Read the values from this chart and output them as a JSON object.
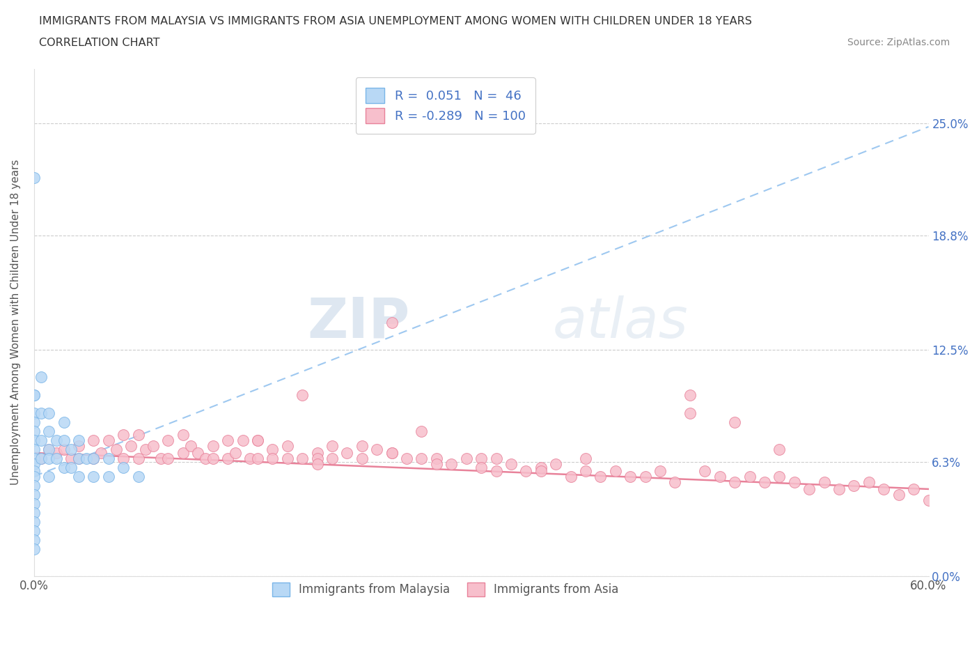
{
  "title_line1": "IMMIGRANTS FROM MALAYSIA VS IMMIGRANTS FROM ASIA UNEMPLOYMENT AMONG WOMEN WITH CHILDREN UNDER 18 YEARS",
  "title_line2": "CORRELATION CHART",
  "source": "Source: ZipAtlas.com",
  "ylabel": "Unemployment Among Women with Children Under 18 years",
  "xlim": [
    0.0,
    0.6
  ],
  "ylim": [
    0.0,
    0.28
  ],
  "yticks": [
    0.0,
    0.063,
    0.125,
    0.188,
    0.25
  ],
  "ytick_labels_left": [
    "0.0%",
    "6.3%",
    "12.5%",
    "18.8%",
    "25.0%"
  ],
  "ytick_labels_right": [
    "25.0%",
    "18.8%",
    "12.5%",
    "6.3%",
    "0.0%"
  ],
  "xticks": [
    0.0,
    0.1,
    0.2,
    0.3,
    0.4,
    0.5,
    0.6
  ],
  "xtick_labels": [
    "0.0%",
    "",
    "",
    "",
    "",
    "",
    "60.0%"
  ],
  "malaysia_color": "#b8d8f5",
  "malaysia_edge": "#7ab5e8",
  "asia_color": "#f7bfcc",
  "asia_edge": "#e8829a",
  "trendline_malaysia_color": "#9ec8f0",
  "trendline_asia_color": "#e8829a",
  "R_malaysia": 0.051,
  "N_malaysia": 46,
  "R_asia": -0.289,
  "N_asia": 100,
  "legend_label_malaysia": "Immigrants from Malaysia",
  "legend_label_asia": "Immigrants from Asia",
  "watermark_zip": "ZIP",
  "watermark_atlas": "atlas",
  "trendline_malaysia_x0": 0.0,
  "trendline_malaysia_y0": 0.055,
  "trendline_malaysia_x1": 0.6,
  "trendline_malaysia_y1": 0.248,
  "trendline_asia_x0": 0.0,
  "trendline_asia_y0": 0.068,
  "trendline_asia_x1": 0.6,
  "trendline_asia_y1": 0.048,
  "malaysia_x": [
    0.0,
    0.0,
    0.0,
    0.0,
    0.0,
    0.0,
    0.0,
    0.0,
    0.0,
    0.0,
    0.0,
    0.0,
    0.0,
    0.0,
    0.0,
    0.0,
    0.0,
    0.0,
    0.0,
    0.0,
    0.005,
    0.005,
    0.005,
    0.005,
    0.01,
    0.01,
    0.01,
    0.01,
    0.01,
    0.015,
    0.015,
    0.02,
    0.02,
    0.02,
    0.025,
    0.025,
    0.03,
    0.03,
    0.03,
    0.035,
    0.04,
    0.04,
    0.05,
    0.05,
    0.06,
    0.07
  ],
  "malaysia_y": [
    0.22,
    0.1,
    0.1,
    0.09,
    0.085,
    0.08,
    0.075,
    0.07,
    0.065,
    0.062,
    0.058,
    0.055,
    0.05,
    0.045,
    0.04,
    0.035,
    0.03,
    0.025,
    0.02,
    0.015,
    0.11,
    0.09,
    0.075,
    0.065,
    0.09,
    0.08,
    0.07,
    0.065,
    0.055,
    0.075,
    0.065,
    0.085,
    0.075,
    0.06,
    0.07,
    0.06,
    0.075,
    0.065,
    0.055,
    0.065,
    0.065,
    0.055,
    0.065,
    0.055,
    0.06,
    0.055
  ],
  "asia_x": [
    0.005,
    0.01,
    0.015,
    0.02,
    0.025,
    0.03,
    0.03,
    0.04,
    0.04,
    0.045,
    0.05,
    0.055,
    0.06,
    0.06,
    0.065,
    0.07,
    0.07,
    0.075,
    0.08,
    0.085,
    0.09,
    0.09,
    0.1,
    0.1,
    0.105,
    0.11,
    0.115,
    0.12,
    0.12,
    0.13,
    0.13,
    0.135,
    0.14,
    0.145,
    0.15,
    0.15,
    0.16,
    0.16,
    0.17,
    0.17,
    0.18,
    0.18,
    0.19,
    0.19,
    0.2,
    0.2,
    0.21,
    0.22,
    0.22,
    0.23,
    0.24,
    0.24,
    0.25,
    0.26,
    0.27,
    0.27,
    0.28,
    0.29,
    0.3,
    0.3,
    0.31,
    0.32,
    0.33,
    0.34,
    0.35,
    0.36,
    0.37,
    0.38,
    0.39,
    0.4,
    0.41,
    0.42,
    0.43,
    0.44,
    0.45,
    0.46,
    0.47,
    0.48,
    0.49,
    0.5,
    0.51,
    0.52,
    0.53,
    0.54,
    0.55,
    0.56,
    0.57,
    0.58,
    0.59,
    0.6,
    0.31,
    0.34,
    0.26,
    0.37,
    0.44,
    0.47,
    0.5,
    0.24,
    0.15,
    0.19
  ],
  "asia_y": [
    0.065,
    0.07,
    0.068,
    0.07,
    0.065,
    0.072,
    0.065,
    0.075,
    0.065,
    0.068,
    0.075,
    0.07,
    0.078,
    0.065,
    0.072,
    0.078,
    0.065,
    0.07,
    0.072,
    0.065,
    0.075,
    0.065,
    0.078,
    0.068,
    0.072,
    0.068,
    0.065,
    0.072,
    0.065,
    0.075,
    0.065,
    0.068,
    0.075,
    0.065,
    0.075,
    0.065,
    0.07,
    0.065,
    0.072,
    0.065,
    0.1,
    0.065,
    0.068,
    0.065,
    0.072,
    0.065,
    0.068,
    0.072,
    0.065,
    0.07,
    0.068,
    0.14,
    0.065,
    0.065,
    0.065,
    0.062,
    0.062,
    0.065,
    0.065,
    0.06,
    0.058,
    0.062,
    0.058,
    0.06,
    0.062,
    0.055,
    0.058,
    0.055,
    0.058,
    0.055,
    0.055,
    0.058,
    0.052,
    0.09,
    0.058,
    0.055,
    0.052,
    0.055,
    0.052,
    0.055,
    0.052,
    0.048,
    0.052,
    0.048,
    0.05,
    0.052,
    0.048,
    0.045,
    0.048,
    0.042,
    0.065,
    0.058,
    0.08,
    0.065,
    0.1,
    0.085,
    0.07,
    0.068,
    0.075,
    0.062
  ]
}
